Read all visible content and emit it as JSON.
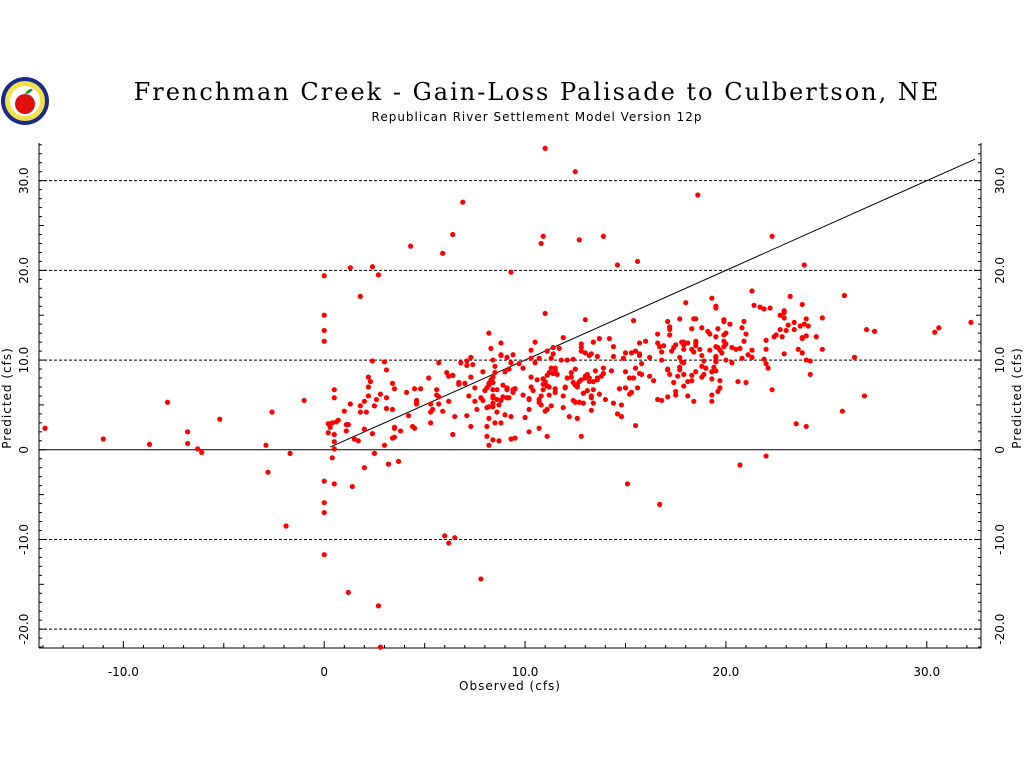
{
  "chart_data": {
    "type": "scatter",
    "title": "Frenchman Creek - Gain-Loss Palisade to Culbertson, NE",
    "subtitle": "Republican River Settlement Model Version 12p",
    "xlabel": "Observed (cfs)",
    "ylabel": "Predicted (cfs)",
    "xlim": [
      -14.2,
      32.7
    ],
    "ylim": [
      -22.1,
      34.2
    ],
    "x_ticks": [
      {
        "value": -10,
        "label": "-10.0"
      },
      {
        "value": 0,
        "label": "0"
      },
      {
        "value": 10,
        "label": "10.0"
      },
      {
        "value": 20,
        "label": "20.0"
      },
      {
        "value": 30,
        "label": "30.0"
      }
    ],
    "y_ticks": [
      {
        "value": -20,
        "label": "-20.0"
      },
      {
        "value": -10,
        "label": "-10.0"
      },
      {
        "value": 0,
        "label": "0"
      },
      {
        "value": 10,
        "label": "10.0"
      },
      {
        "value": 20,
        "label": "20.0"
      },
      {
        "value": 30,
        "label": "30.0"
      }
    ],
    "grid": "dashed horizontal lines at y ticks",
    "reference_lines": [
      {
        "type": "one-to-one",
        "from": [
          0.3,
          0.3
        ],
        "to": [
          32.4,
          32.4
        ],
        "style": "solid"
      },
      {
        "type": "zero",
        "y": 0,
        "style": "solid"
      }
    ],
    "point_color": "#ff0000",
    "outliers": [
      [
        -13.9,
        2.4
      ],
      [
        -11.0,
        1.2
      ],
      [
        -8.7,
        0.6
      ],
      [
        -7.8,
        5.3
      ],
      [
        -6.8,
        2.0
      ],
      [
        -6.8,
        0.7
      ],
      [
        -6.3,
        0.1
      ],
      [
        -6.1,
        -0.3
      ],
      [
        -5.2,
        3.4
      ],
      [
        -2.9,
        0.5
      ],
      [
        -2.8,
        -2.5
      ],
      [
        -2.6,
        4.2
      ],
      [
        -1.9,
        -8.5
      ],
      [
        -1.7,
        -0.4
      ],
      [
        -1.0,
        5.5
      ],
      [
        0.0,
        19.4
      ],
      [
        0.0,
        15.0
      ],
      [
        0.0,
        13.3
      ],
      [
        0.0,
        12.1
      ],
      [
        0.0,
        -11.7
      ],
      [
        0.0,
        -7.0
      ],
      [
        0.0,
        -5.9
      ],
      [
        0.0,
        -3.5
      ],
      [
        1.2,
        -15.9
      ],
      [
        1.3,
        20.3
      ],
      [
        1.8,
        17.1
      ],
      [
        2.4,
        20.4
      ],
      [
        2.7,
        19.5
      ],
      [
        2.7,
        -17.4
      ],
      [
        2.8,
        -22.0
      ],
      [
        3.0,
        9.8
      ],
      [
        4.3,
        22.7
      ],
      [
        5.9,
        21.9
      ],
      [
        6.4,
        24.0
      ],
      [
        6.9,
        27.6
      ],
      [
        6.0,
        -9.6
      ],
      [
        6.2,
        -10.4
      ],
      [
        6.5,
        -9.8
      ],
      [
        7.8,
        -14.4
      ],
      [
        8.4,
        7.5
      ],
      [
        9.3,
        19.8
      ],
      [
        10.9,
        23.8
      ],
      [
        10.8,
        23.0
      ],
      [
        11.0,
        33.6
      ],
      [
        12.5,
        31.0
      ],
      [
        12.7,
        23.4
      ],
      [
        13.9,
        23.8
      ],
      [
        14.6,
        20.6
      ],
      [
        15.6,
        21.0
      ],
      [
        15.1,
        -3.8
      ],
      [
        16.7,
        -6.1
      ],
      [
        18.6,
        28.4
      ],
      [
        22.3,
        23.8
      ],
      [
        23.9,
        20.6
      ],
      [
        25.9,
        17.2
      ],
      [
        26.4,
        10.3
      ],
      [
        27.0,
        13.4
      ],
      [
        27.4,
        13.2
      ],
      [
        30.4,
        13.1
      ],
      [
        30.6,
        13.6
      ],
      [
        32.2,
        14.2
      ],
      [
        20.7,
        -1.7
      ],
      [
        22.0,
        -0.7
      ],
      [
        23.5,
        2.9
      ],
      [
        24.0,
        2.6
      ],
      [
        25.8,
        4.3
      ],
      [
        26.9,
        6.0
      ]
    ],
    "cloud": {
      "count": 440,
      "x_range": [
        0.1,
        25.0
      ],
      "description": "dense cluster of observed vs predicted points mostly between 0 and 20 cfs"
    }
  }
}
